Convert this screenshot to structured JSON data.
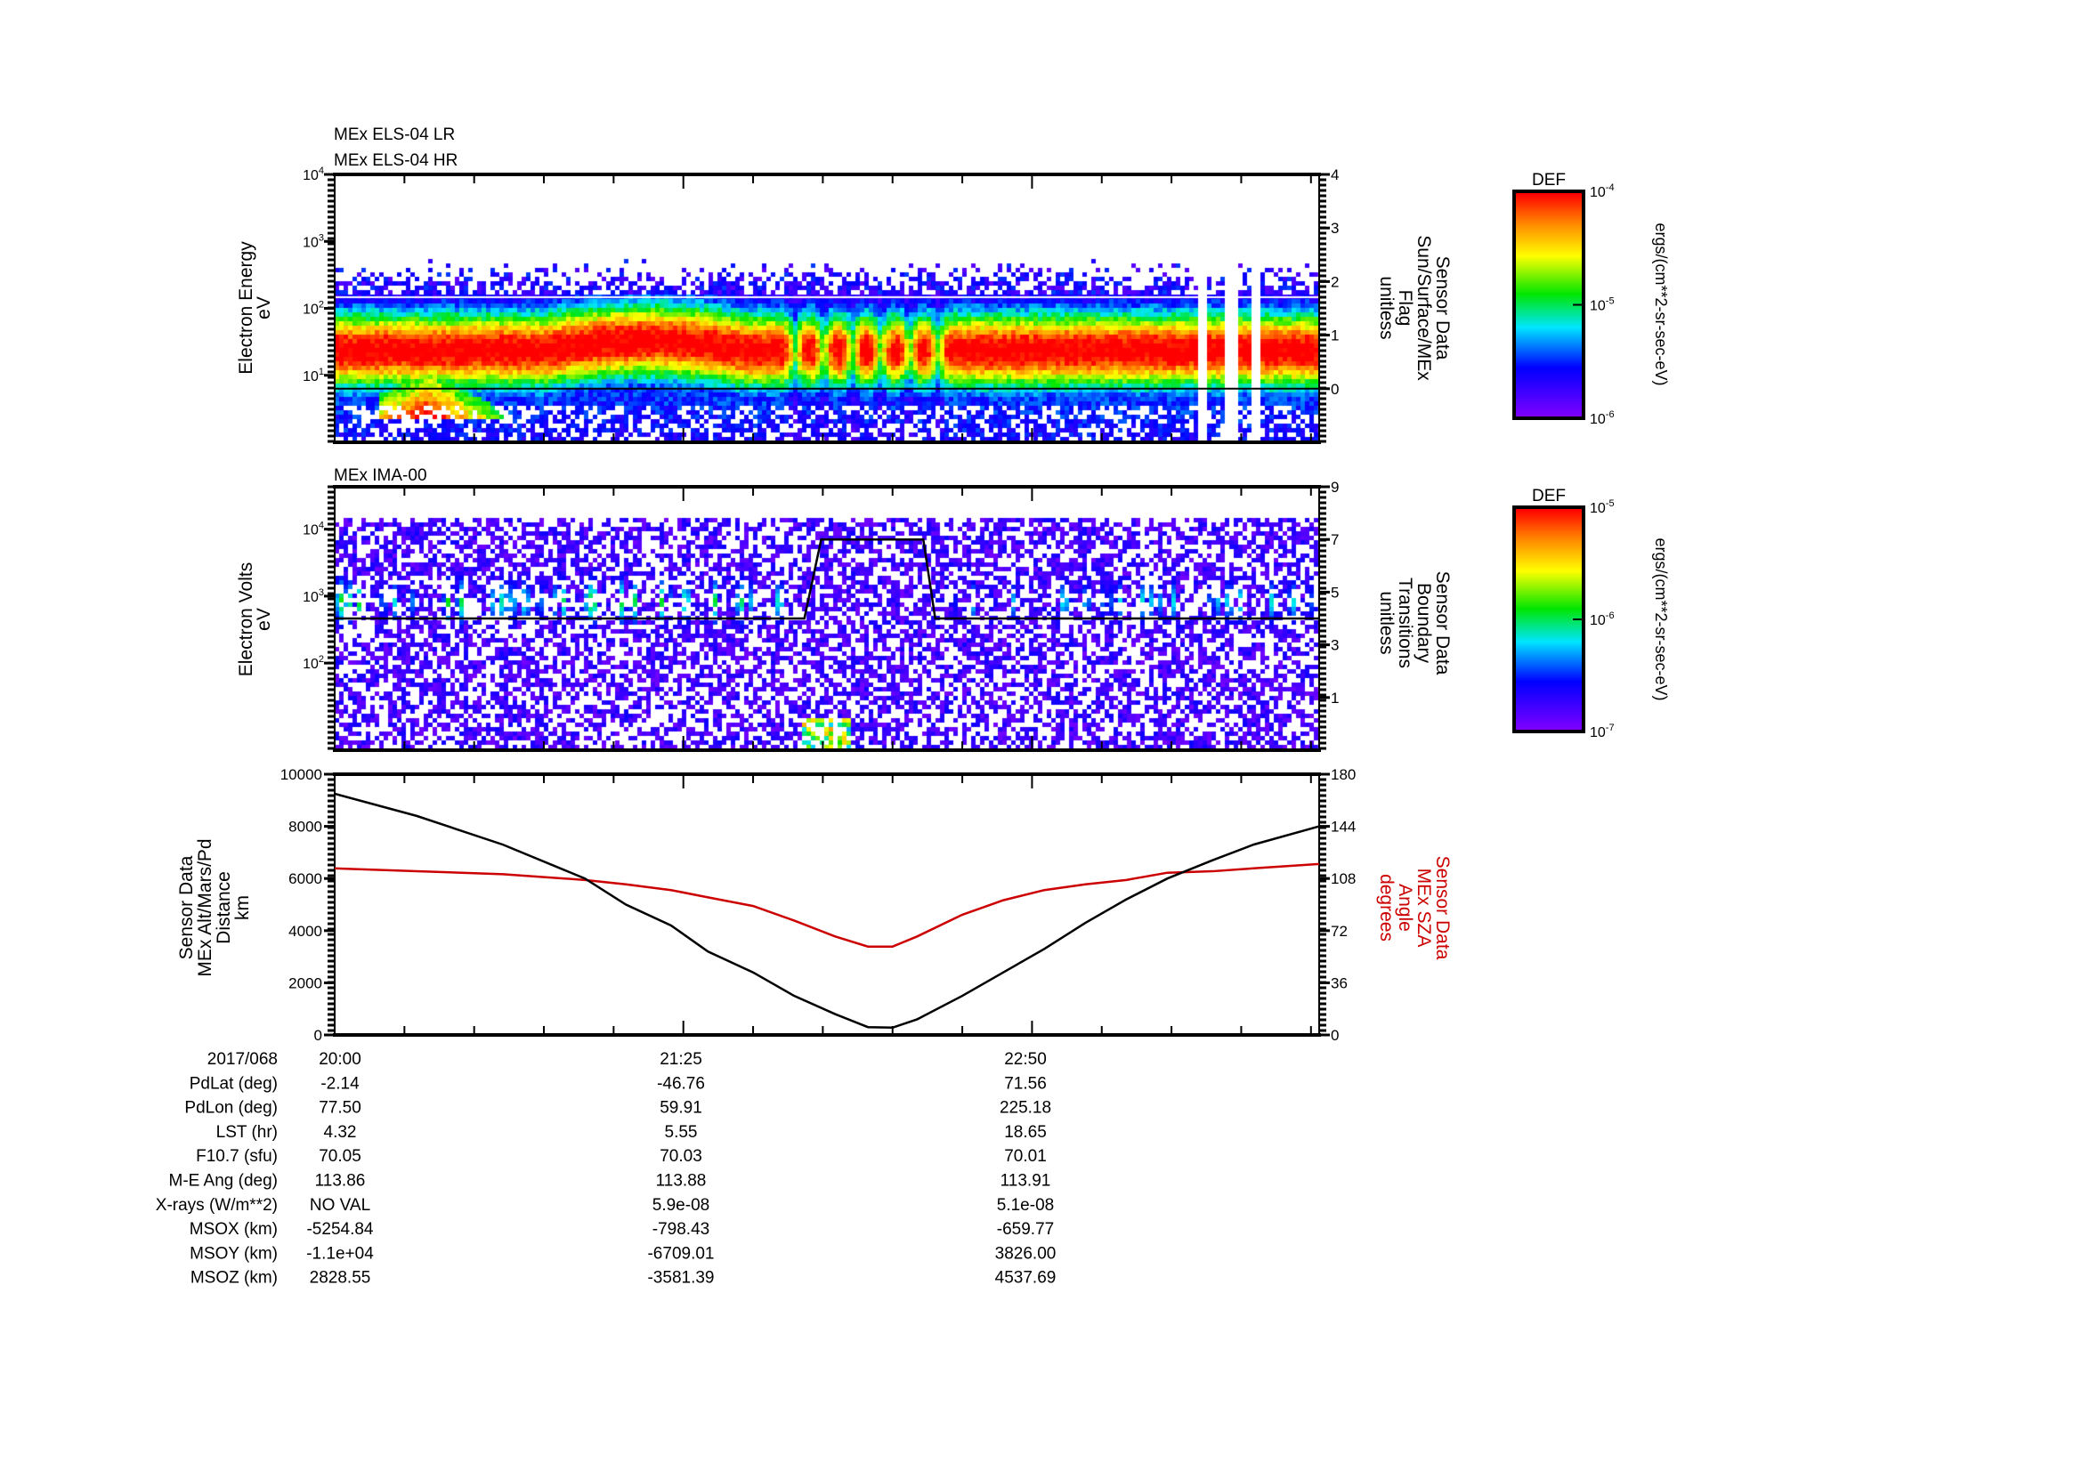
{
  "chart_data": [
    {
      "type": "heatmap",
      "titles": [
        "MEx ELS-04 LR",
        "MEx ELS-04 HR"
      ],
      "ylabel": [
        "Electron Energy",
        "eV"
      ],
      "yscale": "log",
      "ylim": [
        1,
        10000
      ],
      "yticks": [
        {
          "v": 10,
          "label": "10",
          "exp": "1"
        },
        {
          "v": 100,
          "label": "10",
          "exp": "2"
        },
        {
          "v": 1000,
          "label": "10",
          "exp": "3"
        },
        {
          "v": 10000,
          "label": "10",
          "exp": "4"
        }
      ],
      "y2label": [
        "Sensor Data",
        "Sun/Surface/MEx",
        "Flag",
        "unitless"
      ],
      "y2lim": [
        -1,
        4
      ],
      "y2ticks": [
        "0",
        "1",
        "2",
        "3",
        "4"
      ],
      "flag_value": 0,
      "colorbar": {
        "title": "DEF",
        "unit": "ergs/(cm**2-sr-sec-eV)",
        "ticks": [
          {
            "label": "10",
            "exp": "-4"
          },
          {
            "label": "10",
            "exp": "-5"
          },
          {
            "label": "10",
            "exp": "-6"
          }
        ],
        "range": [
          1e-06,
          0.0001
        ]
      },
      "band_center_eV": 25,
      "data_gaps_minutes": [
        211,
        218,
        224
      ]
    },
    {
      "type": "heatmap",
      "titles": [
        "MEx IMA-00"
      ],
      "ylabel": [
        "Electron Volts",
        "eV"
      ],
      "yscale": "log",
      "ylim": [
        5,
        43000
      ],
      "yticks": [
        {
          "v": 100,
          "label": "10",
          "exp": "2"
        },
        {
          "v": 1000,
          "label": "10",
          "exp": "3"
        },
        {
          "v": 10000,
          "label": "10",
          "exp": "4"
        }
      ],
      "y2label": [
        "Sensor Data",
        "Boundary",
        "Transitions",
        "unitless"
      ],
      "y2lim": [
        -1,
        9
      ],
      "y2ticks": [
        "1",
        "3",
        "5",
        "7",
        "9"
      ],
      "boundary_line": {
        "minutes": [
          0,
          114.5,
          118.6,
          143.5,
          146.4,
          240
        ],
        "values": [
          4,
          4,
          7,
          7,
          4,
          4
        ]
      },
      "colorbar": {
        "title": "DEF",
        "unit": "ergs/(cm**2-sr-sec-eV)",
        "ticks": [
          {
            "label": "10",
            "exp": "-5"
          },
          {
            "label": "10",
            "exp": "-6"
          },
          {
            "label": "10",
            "exp": "-7"
          }
        ],
        "range": [
          1e-07,
          1e-05
        ]
      }
    },
    {
      "type": "line",
      "ylabel": [
        "Sensor Data",
        "MEx Alt/Mars/Pd",
        "Distance",
        "km"
      ],
      "ylim": [
        0,
        10000
      ],
      "yticks": [
        "0",
        "2000",
        "4000",
        "6000",
        "8000",
        "10000"
      ],
      "y2label": [
        "Sensor Data",
        "MEx SZA",
        "Angle",
        "degrees"
      ],
      "y2lim": [
        0,
        180
      ],
      "y2ticks": [
        "0",
        "36",
        "72",
        "108",
        "144",
        "180"
      ],
      "x_minutes_after_20:00": [
        0,
        20,
        41,
        61,
        71,
        82,
        91,
        102,
        112,
        122,
        130,
        136,
        142,
        153,
        163,
        173,
        183,
        193,
        203,
        214,
        224,
        240
      ],
      "series": [
        {
          "name": "MEx Alt/Mars/Pd Distance (km)",
          "color": "#000000",
          "values": [
            9250,
            8400,
            7300,
            6000,
            5000,
            4200,
            3200,
            2400,
            1500,
            800,
            300,
            280,
            600,
            1500,
            2400,
            3300,
            4300,
            5200,
            6000,
            6700,
            7300,
            8000
          ]
        },
        {
          "name": "MEx SZA Angle (degrees)",
          "color": "#cc0000",
          "values": [
            115,
            113,
            111,
            107,
            104,
            100,
            95,
            89,
            79,
            68,
            61,
            61,
            68,
            83,
            93,
            100,
            104,
            107,
            112,
            113,
            115,
            118
          ]
        }
      ]
    }
  ],
  "time_axis": {
    "range_minutes": [
      0,
      240
    ],
    "major_tick_minutes": 17
  },
  "ephemeris": {
    "date": "2017/068",
    "times": [
      "20:00",
      "21:25",
      "22:50"
    ],
    "rows": [
      {
        "label": "PdLat (deg)",
        "values": [
          "-2.14",
          "-46.76",
          "71.56"
        ]
      },
      {
        "label": "PdLon (deg)",
        "values": [
          "77.50",
          "59.91",
          "225.18"
        ]
      },
      {
        "label": "LST (hr)",
        "values": [
          "4.32",
          "5.55",
          "18.65"
        ]
      },
      {
        "label": "F10.7 (sfu)",
        "values": [
          "70.05",
          "70.03",
          "70.01"
        ]
      },
      {
        "label": "M-E Ang (deg)",
        "values": [
          "113.86",
          "113.88",
          "113.91"
        ]
      },
      {
        "label": "X-rays (W/m**2)",
        "values": [
          "NO VAL",
          "5.9e-08",
          "5.1e-08"
        ]
      },
      {
        "label": "MSOX (km)",
        "values": [
          "-5254.84",
          "-798.43",
          "-659.77"
        ]
      },
      {
        "label": "MSOY (km)",
        "values": [
          "-1.1e+04",
          "-6709.01",
          "3826.00"
        ]
      },
      {
        "label": "MSOZ (km)",
        "values": [
          "2828.55",
          "-3581.39",
          "4537.69"
        ]
      }
    ]
  }
}
